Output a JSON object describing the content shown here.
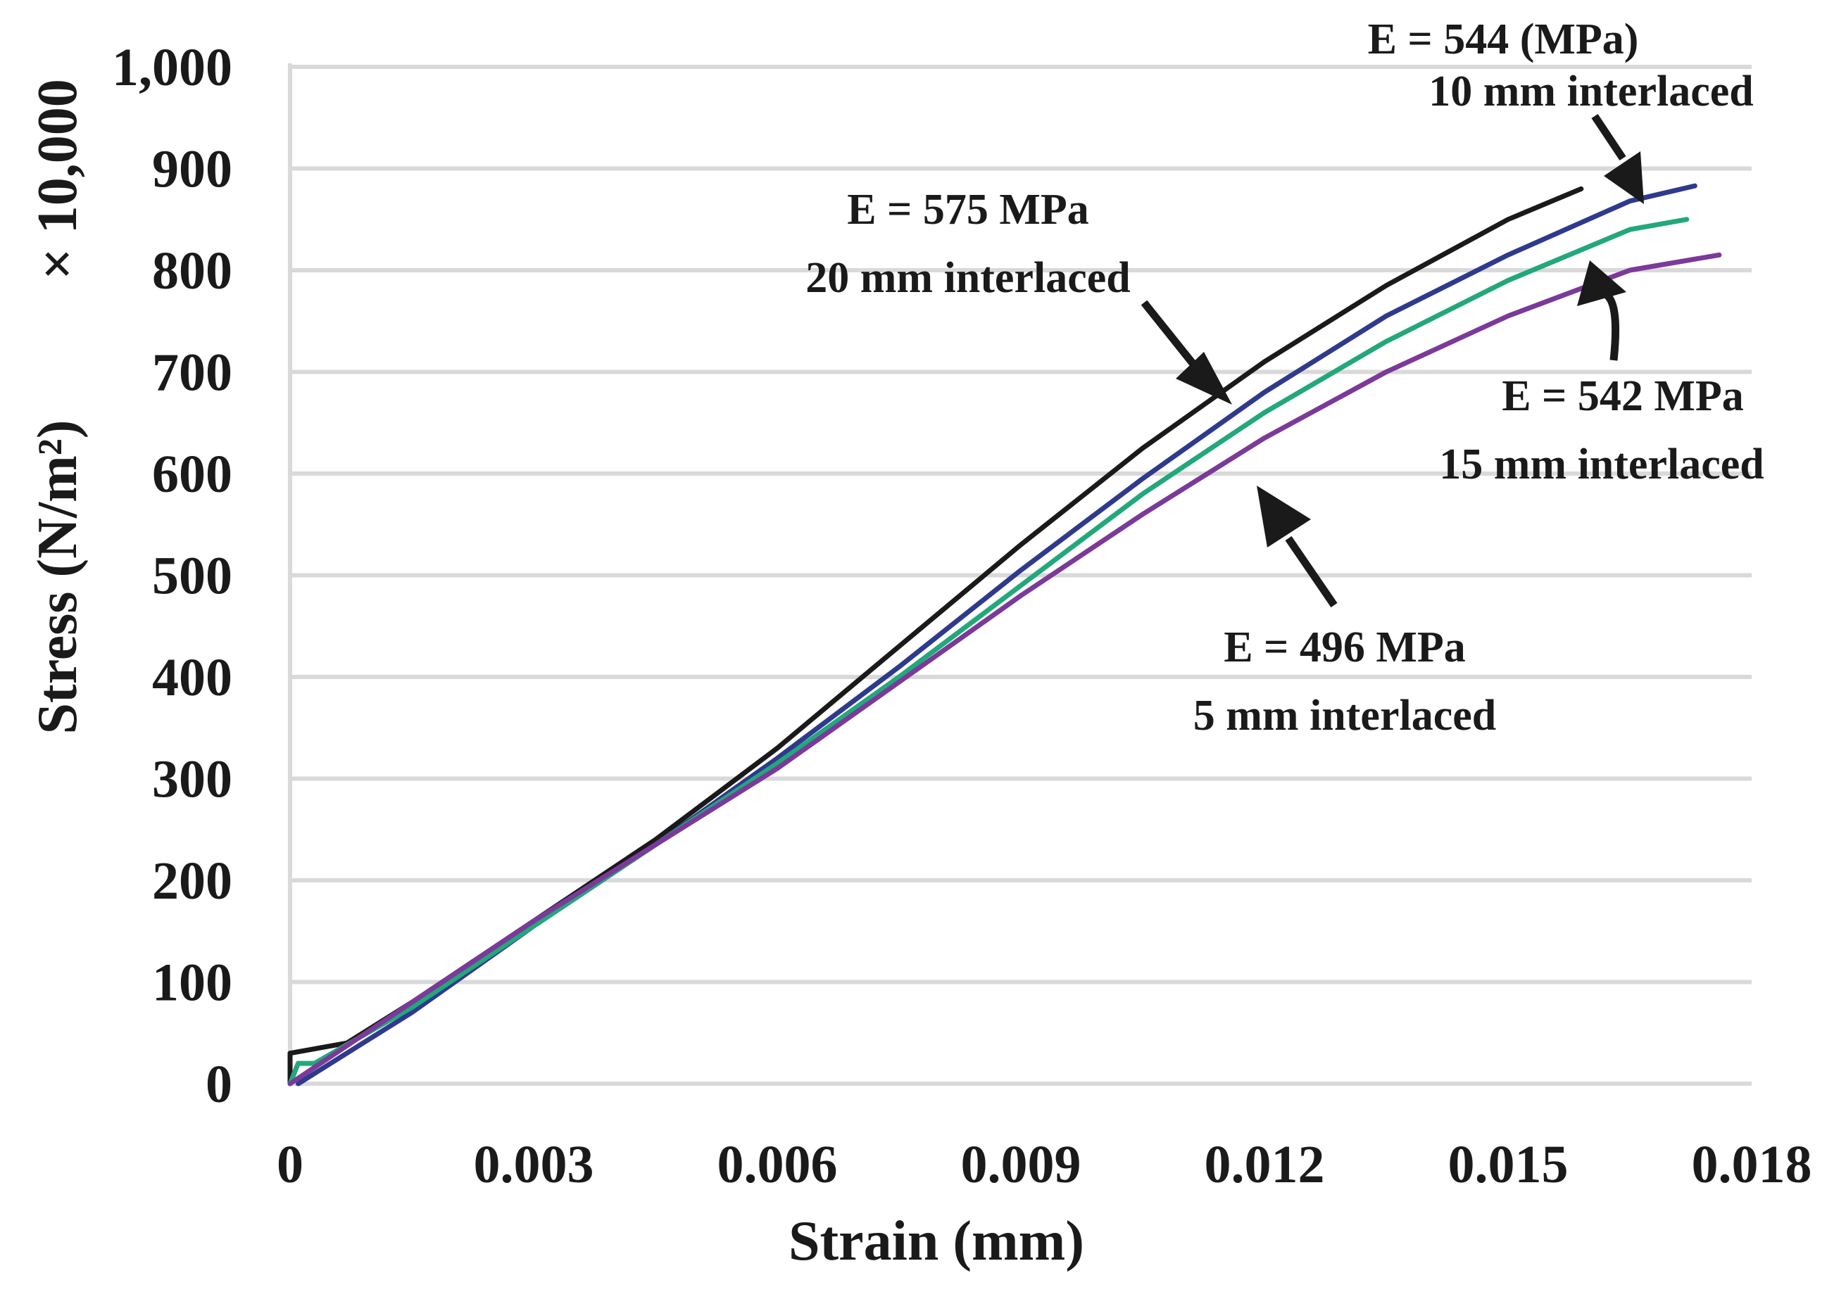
{
  "chart_data": {
    "type": "line",
    "xlabel": "Strain (mm)",
    "ylabel": "Stress (N/m²)",
    "ylabel_multiplier": "× 10,000",
    "xlim": [
      0,
      0.018
    ],
    "ylim": [
      0,
      1000
    ],
    "x_ticks": [
      0,
      0.003,
      0.006,
      0.009,
      0.012,
      0.015,
      0.018
    ],
    "x_tick_labels": [
      "0",
      "0.003",
      "0.006",
      "0.009",
      "0.012",
      "0.015",
      "0.018"
    ],
    "y_ticks": [
      0,
      100,
      200,
      300,
      400,
      500,
      600,
      700,
      800,
      900,
      1000
    ],
    "y_tick_labels": [
      "0",
      "100",
      "200",
      "300",
      "400",
      "500",
      "600",
      "700",
      "800",
      "900",
      "1,000"
    ],
    "grid": "horizontal",
    "series": [
      {
        "name": "20 mm interlaced",
        "color": "#1a1a1a",
        "modulus": "E = 575 MPa",
        "label": "20 mm interlaced",
        "x": [
          0,
          0,
          0.0007,
          0.0015,
          0.003,
          0.0045,
          0.006,
          0.0075,
          0.009,
          0.0105,
          0.012,
          0.0135,
          0.015,
          0.0159
        ],
        "y": [
          0,
          30,
          40,
          80,
          160,
          240,
          330,
          430,
          530,
          625,
          710,
          785,
          850,
          880
        ]
      },
      {
        "name": "10 mm interlaced",
        "color": "#2e3a8c",
        "modulus": "E = 544 (MPa)",
        "label": "10 mm interlaced",
        "x": [
          0.0001,
          0.0015,
          0.003,
          0.0045,
          0.006,
          0.0075,
          0.009,
          0.0105,
          0.012,
          0.0135,
          0.015,
          0.0165,
          0.0173
        ],
        "y": [
          0,
          70,
          155,
          235,
          320,
          410,
          505,
          595,
          680,
          755,
          815,
          868,
          883
        ]
      },
      {
        "name": "15 mm interlaced",
        "color": "#22a87a",
        "modulus": "E = 542 MPa",
        "label": "15 mm interlaced",
        "x": [
          0,
          0.0001,
          0.0003,
          0.0015,
          0.003,
          0.0045,
          0.006,
          0.0075,
          0.009,
          0.0105,
          0.012,
          0.0135,
          0.015,
          0.0165,
          0.0172
        ],
        "y": [
          0,
          20,
          20,
          75,
          155,
          235,
          315,
          400,
          490,
          580,
          660,
          730,
          790,
          840,
          850
        ]
      },
      {
        "name": "5 mm interlaced",
        "color": "#7b3a9a",
        "modulus": "E = 496 MPa",
        "label": "5 mm interlaced",
        "x": [
          0,
          0.0015,
          0.003,
          0.0045,
          0.006,
          0.0075,
          0.009,
          0.0105,
          0.012,
          0.0135,
          0.015,
          0.0165,
          0.0176
        ],
        "y": [
          0,
          80,
          160,
          235,
          310,
          395,
          480,
          560,
          635,
          700,
          755,
          800,
          815
        ]
      }
    ],
    "annotations": [
      {
        "series": "20 mm interlaced",
        "line1": "E = 575 MPa",
        "line2": "20 mm interlaced"
      },
      {
        "series": "10 mm interlaced",
        "line1": "E = 544 (MPa)",
        "line2": "10 mm interlaced"
      },
      {
        "series": "15 mm interlaced",
        "line1": "E = 542 MPa",
        "line2": "15 mm interlaced"
      },
      {
        "series": "5 mm interlaced",
        "line1": "E = 496 MPa",
        "line2": "5 mm interlaced"
      }
    ]
  }
}
